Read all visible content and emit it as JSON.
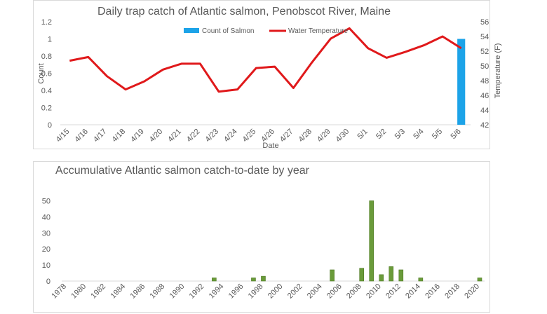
{
  "chart_data": [
    {
      "type": "bar+line",
      "title": "Daily trap catch of Atlantic salmon, Penobscot River, Maine",
      "xlabel": "Date",
      "ylabel": "Count",
      "y2label": "Temperature (F)",
      "ylim": [
        0,
        1.2
      ],
      "yticks": [
        "0",
        "0.2",
        "0.4",
        "0.6",
        "0.8",
        "1",
        "1.2"
      ],
      "y2lim": [
        42,
        56
      ],
      "y2ticks": [
        "42",
        "44",
        "46",
        "48",
        "50",
        "52",
        "54",
        "56"
      ],
      "categories": [
        "4/15",
        "4/16",
        "4/17",
        "4/18",
        "4/19",
        "4/20",
        "4/21",
        "4/22",
        "4/23",
        "4/24",
        "4/25",
        "4/26",
        "4/27",
        "4/28",
        "4/29",
        "4/30",
        "5/1",
        "5/2",
        "5/3",
        "5/4",
        "5/5",
        "5/6"
      ],
      "legend": [
        "Count of Salmon",
        "Water Temperature"
      ],
      "series": [
        {
          "name": "Count of Salmon",
          "axis": "left",
          "kind": "bar",
          "color": "#1ca3e8",
          "values": [
            0,
            0,
            0,
            0,
            0,
            0,
            0,
            0,
            0,
            0,
            0,
            0,
            0,
            0,
            0,
            0,
            0,
            0,
            0,
            0,
            0,
            1
          ]
        },
        {
          "name": "Water Temperature",
          "axis": "right",
          "kind": "line",
          "color": "#e0191b",
          "values": [
            50.7,
            51.2,
            48.6,
            46.8,
            47.9,
            49.5,
            50.3,
            50.3,
            46.5,
            46.8,
            49.7,
            49.9,
            47.0,
            50.5,
            53.7,
            55.1,
            52.4,
            51.1,
            51.9,
            52.8,
            54.0,
            52.4
          ]
        }
      ]
    },
    {
      "type": "bar",
      "title": "Accumulative Atlantic salmon catch-to-date by year",
      "ylim": [
        0,
        55
      ],
      "yticks": [
        "0",
        "10",
        "20",
        "30",
        "40",
        "50"
      ],
      "categories": [
        "1978",
        "1979",
        "1980",
        "1981",
        "1982",
        "1983",
        "1984",
        "1985",
        "1986",
        "1987",
        "1988",
        "1989",
        "1990",
        "1991",
        "1992",
        "1993",
        "1994",
        "1995",
        "1996",
        "1997",
        "1998",
        "1999",
        "2000",
        "2001",
        "2002",
        "2003",
        "2004",
        "2005",
        "2006",
        "2007",
        "2008",
        "2009",
        "2010",
        "2011",
        "2012",
        "2013",
        "2014",
        "2015",
        "2016",
        "2017",
        "2018",
        "2019",
        "2020"
      ],
      "shown_labels": [
        "1978",
        "1980",
        "1982",
        "1984",
        "1986",
        "1988",
        "1990",
        "1992",
        "1994",
        "1996",
        "1998",
        "2000",
        "2002",
        "2004",
        "2006",
        "2008",
        "2010",
        "2012",
        "2014",
        "2016",
        "2018",
        "2020"
      ],
      "color": "#6a9b3a",
      "values": [
        0,
        0,
        0,
        0,
        0,
        0,
        0,
        0,
        0,
        0,
        0,
        0,
        0,
        0,
        0,
        2,
        0,
        0,
        0,
        2,
        3,
        0,
        0,
        0,
        0,
        0,
        0,
        7,
        0,
        0,
        8,
        50,
        4,
        9,
        7,
        0,
        2,
        0,
        0,
        0,
        0,
        0,
        2
      ]
    }
  ]
}
